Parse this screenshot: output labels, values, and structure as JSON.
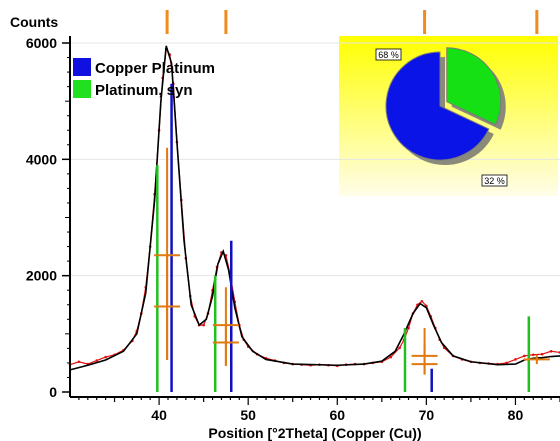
{
  "chart_data": {
    "type": "line",
    "ylabel": "Counts",
    "xlabel": "Position [°2Theta] (Copper (Cu))",
    "xlim": [
      30,
      85
    ],
    "ylim": [
      0,
      6000
    ],
    "x_ticks": [
      40,
      50,
      60,
      70,
      80
    ],
    "y_ticks": [
      0,
      2000,
      4000,
      6000
    ],
    "series": [
      {
        "type": "line",
        "color": "#000000",
        "x": [
          30,
          32,
          34,
          36,
          37.5,
          38.5,
          39.5,
          40.2,
          40.8,
          41.4,
          42,
          42.8,
          43.6,
          44.5,
          45.3,
          46,
          46.6,
          47.2,
          47.8,
          48.5,
          49.3,
          50.5,
          52,
          55,
          60,
          63,
          65,
          66.5,
          67.5,
          68.5,
          69.3,
          70,
          70.8,
          71.7,
          73,
          75,
          78,
          80,
          81,
          82,
          83,
          84,
          85
        ],
        "y": [
          380,
          460,
          550,
          700,
          1000,
          1700,
          3300,
          5000,
          5950,
          5650,
          4300,
          2600,
          1500,
          1150,
          1250,
          1650,
          2200,
          2420,
          2100,
          1450,
          950,
          700,
          560,
          480,
          460,
          480,
          530,
          700,
          1000,
          1350,
          1520,
          1450,
          1150,
          850,
          620,
          520,
          470,
          480,
          550,
          580,
          590,
          610,
          620
        ]
      },
      {
        "type": "scatter",
        "color": "#e01010",
        "x": [
          30,
          31,
          32,
          33,
          34,
          35,
          36,
          37,
          37.5,
          38,
          38.5,
          39,
          39.5,
          40,
          40.4,
          40.8,
          41.2,
          41.6,
          42,
          42.5,
          43,
          43.5,
          44,
          44.5,
          45,
          45.5,
          46,
          46.5,
          47,
          47.5,
          48,
          48.5,
          49,
          49.5,
          50,
          51,
          52,
          53,
          54,
          55,
          56,
          57,
          58,
          59,
          60,
          61,
          62,
          63,
          64,
          65,
          66,
          67,
          67.5,
          68,
          68.5,
          69,
          69.5,
          70,
          70.5,
          71,
          71.5,
          72,
          73,
          74,
          75,
          76,
          77,
          78,
          79,
          80,
          81,
          82,
          83,
          84,
          85
        ],
        "y": [
          470,
          520,
          480,
          540,
          600,
          640,
          720,
          880,
          1050,
          1350,
          1800,
          2500,
          3400,
          4500,
          5400,
          5900,
          5800,
          5300,
          4300,
          3300,
          2300,
          1650,
          1300,
          1150,
          1150,
          1350,
          1750,
          2150,
          2400,
          2350,
          2000,
          1550,
          1150,
          900,
          780,
          650,
          580,
          540,
          500,
          480,
          470,
          460,
          470,
          460,
          450,
          470,
          480,
          480,
          500,
          520,
          600,
          760,
          900,
          1100,
          1350,
          1500,
          1560,
          1480,
          1300,
          1100,
          900,
          760,
          620,
          560,
          520,
          500,
          490,
          480,
          500,
          560,
          620,
          640,
          650,
          700,
          680
        ]
      }
    ],
    "legend": {
      "placement": "top-left",
      "entries": [
        {
          "name": "Copper Platinum",
          "color": "#1010e0"
        },
        {
          "name": "Platinum, syn",
          "color": "#20e020"
        }
      ]
    },
    "reference_lines": {
      "copper_platinum": {
        "color": "#1010c0",
        "x": [
          41.4,
          48.1,
          70.6
        ],
        "y": [
          5300,
          2600,
          400
        ]
      },
      "platinum_syn": {
        "color": "#20c020",
        "x": [
          39.8,
          46.3,
          67.6,
          81.5
        ],
        "y": [
          3900,
          2000,
          1100,
          1300
        ]
      }
    },
    "position_markers": {
      "color": "#f08c1e",
      "x": [
        40.9,
        47.5,
        69.8,
        82.4
      ]
    },
    "error_bars": {
      "color": "#e07a10",
      "points": [
        {
          "x": 40.9,
          "y": 2350,
          "low": 550,
          "high": 4200
        },
        {
          "x": 40.9,
          "y": 1470,
          "low": 550,
          "high": 2350
        },
        {
          "x": 47.5,
          "y": 1150,
          "low": 450,
          "high": 1800
        },
        {
          "x": 47.5,
          "y": 850,
          "low": 450,
          "high": 1200
        },
        {
          "x": 69.8,
          "y": 620,
          "low": 300,
          "high": 1100
        },
        {
          "x": 69.8,
          "y": 480,
          "low": 300,
          "high": 850
        },
        {
          "x": 82.4,
          "y": 560,
          "low": 480,
          "high": 640
        }
      ]
    },
    "inset_pie": {
      "placement": "top-right",
      "background": [
        "#ffff00",
        "#fffde8"
      ],
      "slices": [
        {
          "label": "68 %",
          "value": 68,
          "color": "#0a14e6"
        },
        {
          "label": "32 %",
          "value": 32,
          "color": "#14e014"
        }
      ]
    }
  }
}
